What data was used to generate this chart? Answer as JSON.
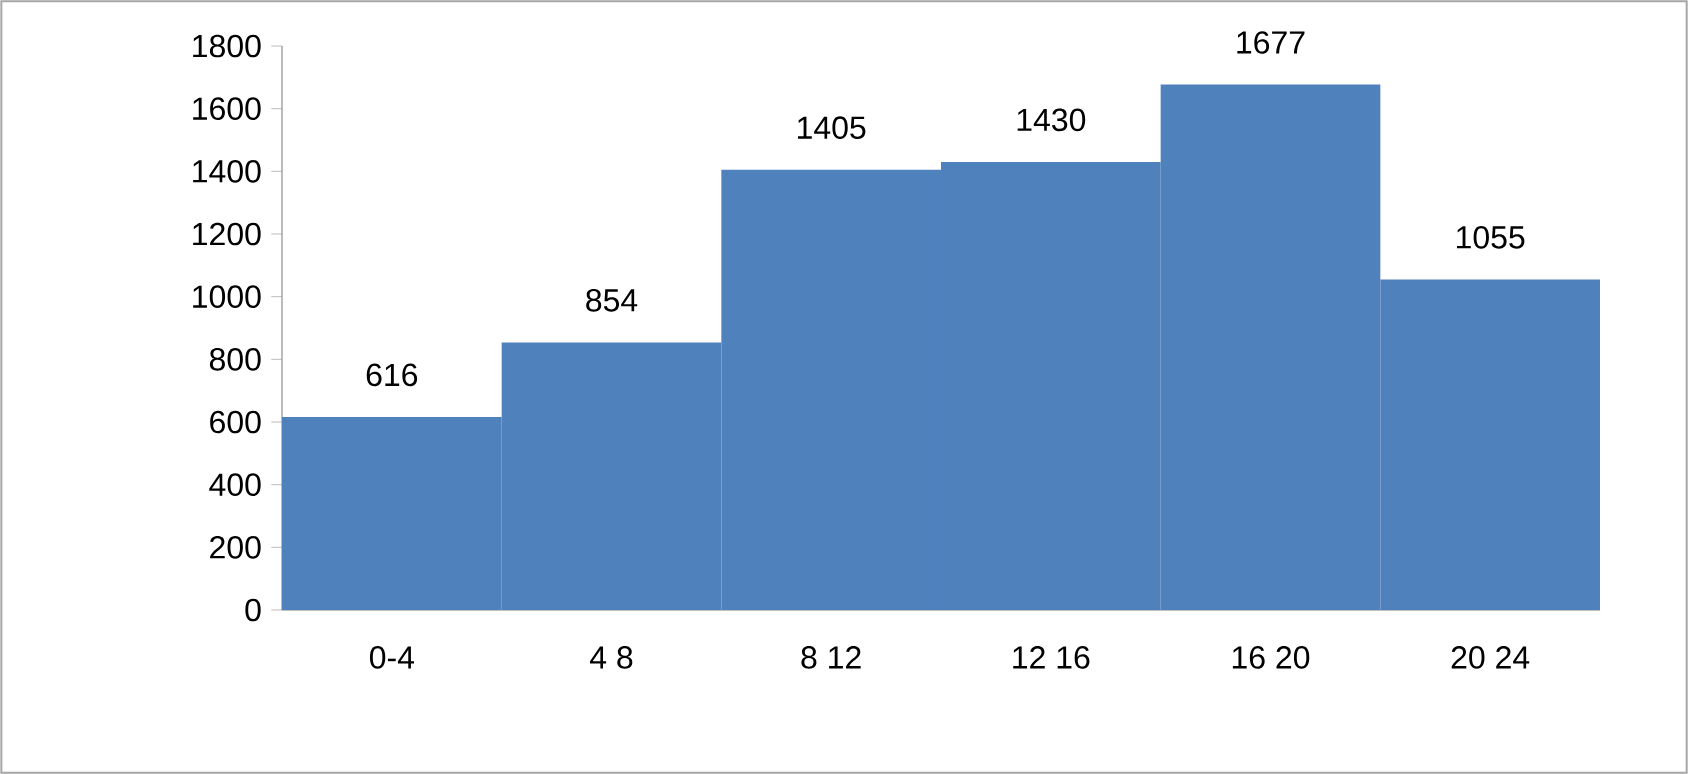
{
  "chart_data": {
    "type": "bar",
    "categories": [
      "0-4",
      "4   8",
      "8   12",
      "12   16",
      "16   20",
      "20   24"
    ],
    "values": [
      616,
      854,
      1405,
      1430,
      1677,
      1055
    ],
    "color": "#4f81bd",
    "ylim": [
      0,
      1800
    ],
    "yticks": [
      0,
      200,
      400,
      600,
      800,
      1000,
      1200,
      1400,
      1600,
      1800
    ],
    "data_labels": true
  }
}
